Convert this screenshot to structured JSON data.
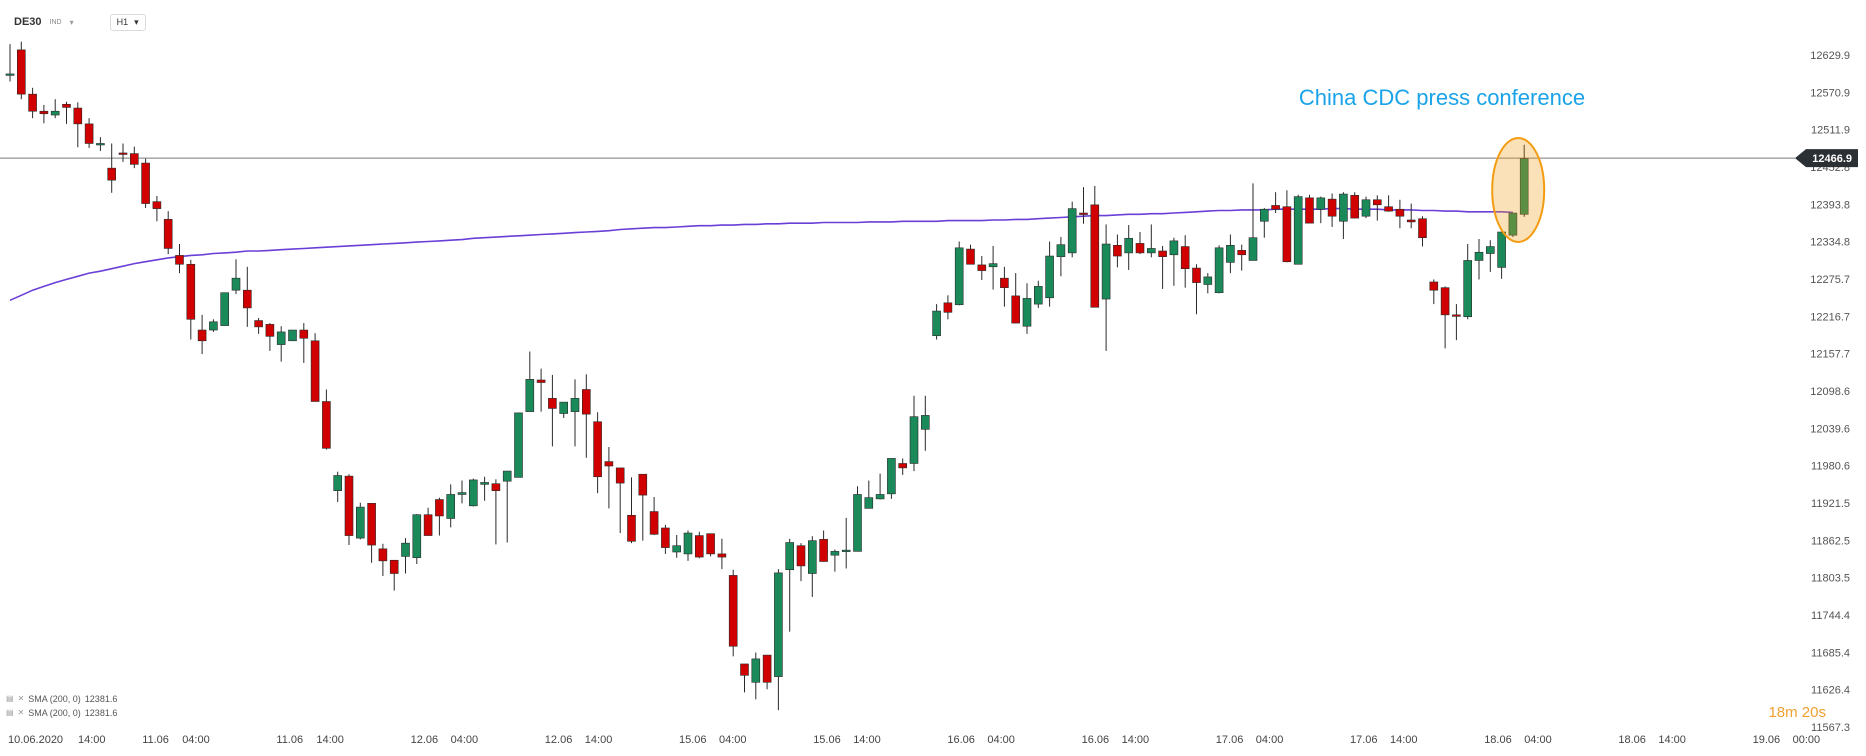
{
  "header": {
    "symbol": "DE30",
    "exchange": "IND",
    "timeframe": "H1"
  },
  "legend": [
    {
      "label": "SMA (200, 0)",
      "value": "12381.6"
    },
    {
      "label": "SMA (200, 0)",
      "value": "12381.6"
    }
  ],
  "timer": "18m 20s",
  "colors": {
    "up": "#1a8a5a",
    "down": "#d00000",
    "sma": "#6a3fd8",
    "annotation": "#1aa3e8",
    "highlight": "#f39c12"
  },
  "chart_data": {
    "type": "candlestick",
    "symbol": "DE30",
    "timeframe": "H1",
    "current_price": "12466.9",
    "annotation": "China CDC press conference",
    "y_ticks": [
      "12629.9",
      "12570.9",
      "12511.9",
      "12452.8",
      "12393.8",
      "12334.8",
      "12275.7",
      "12216.7",
      "12157.7",
      "12098.6",
      "12039.6",
      "11980.6",
      "11921.5",
      "11862.5",
      "11803.5",
      "11744.4",
      "11685.4",
      "11626.4",
      "11567.3"
    ],
    "ylim": [
      11567.3,
      12629.9
    ],
    "x_ticks": [
      "10.06.2020",
      "14:00",
      "11.06",
      "04:00",
      "11.06",
      "14:00",
      "12.06",
      "04:00",
      "12.06",
      "14:00",
      "15.06",
      "04:00",
      "15.06",
      "14:00",
      "16.06",
      "04:00",
      "16.06",
      "14:00",
      "17.06",
      "04:00",
      "17.06",
      "14:00",
      "18.06",
      "04:00",
      "18.06",
      "14:00",
      "19.06",
      "00:00"
    ],
    "grid": false,
    "candles": [
      [
        12598,
        12644,
        12600,
        12647,
        12588
      ],
      [
        12638,
        12647,
        12568,
        12651,
        12560
      ],
      [
        12568,
        12575,
        12541,
        12578,
        12530
      ],
      [
        12541,
        12549,
        12537,
        12551,
        12522
      ],
      [
        12535,
        12552,
        12541,
        12560,
        12530
      ],
      [
        12552,
        12530,
        12547,
        12556,
        12521
      ],
      [
        12546,
        12552,
        12521,
        12555,
        12484
      ],
      [
        12521,
        12526,
        12490,
        12530,
        12483
      ],
      [
        12489,
        12493,
        12490,
        12500,
        12478
      ],
      [
        12451,
        12476,
        12432,
        12490,
        12412
      ],
      [
        12475,
        12484,
        12473,
        12490,
        12461
      ],
      [
        12474,
        12478,
        12457,
        12485,
        12451
      ],
      [
        12459,
        12463,
        12395,
        12466,
        12388
      ],
      [
        12398,
        12392,
        12387,
        12407,
        12367
      ],
      [
        12370,
        12375,
        12324,
        12383,
        12315
      ],
      [
        12313,
        12325,
        12299,
        12331,
        12285
      ],
      [
        12299,
        12303,
        12212,
        12306,
        12180
      ],
      [
        12195,
        12211,
        12178,
        12219,
        12157
      ],
      [
        12195,
        12201,
        12208,
        12212,
        12192
      ],
      [
        12202,
        12210,
        12254,
        12221,
        12254
      ],
      [
        12258,
        12300,
        12277,
        12307,
        12252
      ],
      [
        12258,
        12285,
        12230,
        12295,
        12200
      ],
      [
        12210,
        12189,
        12200,
        12214,
        12191
      ],
      [
        12204,
        12193,
        12185,
        12206,
        12162
      ],
      [
        12172,
        12194,
        12192,
        12201,
        12145
      ],
      [
        12178,
        12195,
        12195,
        12195,
        12190
      ],
      [
        12195,
        12200,
        12182,
        12206,
        12143
      ],
      [
        12178,
        12182,
        12082,
        12190,
        12083
      ],
      [
        12082,
        12092,
        12008,
        12101,
        12006
      ],
      [
        11941,
        11966,
        11965,
        11971,
        11923
      ],
      [
        11964,
        11966,
        11870,
        11967,
        11855
      ],
      [
        11866,
        11868,
        11915,
        11922,
        11864
      ],
      [
        11921,
        11920,
        11855,
        11920,
        11827
      ],
      [
        11849,
        11844,
        11830,
        11857,
        11806
      ],
      [
        11831,
        11830,
        11810,
        11820,
        11783
      ],
      [
        11837,
        11840,
        11858,
        11866,
        11810
      ],
      [
        11835,
        11842,
        11903,
        11904,
        11825
      ],
      [
        11903,
        11904,
        11870,
        11914,
        11880
      ],
      [
        11927,
        11906,
        11901,
        11930,
        11870
      ],
      [
        11897,
        11930,
        11935,
        11951,
        11883
      ],
      [
        11935,
        11940,
        11938,
        11957,
        11921
      ],
      [
        11917,
        11950,
        11958,
        11960,
        11916
      ],
      [
        11951,
        11950,
        11954,
        11963,
        11925
      ],
      [
        11952,
        11959,
        11941,
        11955,
        11856
      ],
      [
        11956,
        11866,
        11972,
        11966,
        11859
      ],
      [
        11962,
        11962,
        12064,
        12040,
        12010
      ],
      [
        12066,
        12118,
        12117,
        12161,
        12068
      ],
      [
        12116,
        12115,
        12112,
        12134,
        12066
      ],
      [
        12087,
        12116,
        12071,
        12124,
        12011
      ],
      [
        12063,
        12067,
        12081,
        12081,
        12056
      ],
      [
        12066,
        12069,
        12087,
        12117,
        12011
      ],
      [
        12101,
        12100,
        12062,
        12125,
        11993
      ],
      [
        12050,
        12044,
        11963,
        12065,
        11937
      ],
      [
        11987,
        11984,
        11980,
        12010,
        11913
      ],
      [
        11977,
        11976,
        11953,
        11966,
        11874
      ],
      [
        11902,
        11900,
        11861,
        11962,
        11858
      ],
      [
        11967,
        11964,
        11934,
        11953,
        11862
      ],
      [
        11908,
        11912,
        11872,
        11931,
        11871
      ],
      [
        11882,
        11882,
        11851,
        11887,
        11841
      ],
      [
        11844,
        11840,
        11854,
        11871,
        11835
      ],
      [
        11841,
        11843,
        11874,
        11878,
        11830
      ],
      [
        11870,
        11869,
        11836,
        11876,
        11834
      ],
      [
        11873,
        11870,
        11841,
        11871,
        11837
      ],
      [
        11841,
        11844,
        11836,
        11865,
        11817
      ],
      [
        11807,
        11815,
        11695,
        11816,
        11679
      ],
      [
        11667,
        11664,
        11649,
        11666,
        11622
      ],
      [
        11638,
        11636,
        11675,
        11685,
        11611
      ],
      [
        11681,
        11676,
        11638,
        11666,
        11627
      ],
      [
        11647,
        11634,
        11811,
        11817,
        11594
      ],
      [
        11816,
        11812,
        11859,
        11865,
        11718
      ],
      [
        11854,
        11848,
        11822,
        11858,
        11798
      ],
      [
        11810,
        11808,
        11862,
        11869,
        11773
      ],
      [
        11864,
        11848,
        11829,
        11878,
        11832
      ],
      [
        11839,
        11842,
        11845,
        11848,
        11813
      ],
      [
        11846,
        11843,
        11847,
        11898,
        11818
      ],
      [
        11845,
        11849,
        11935,
        11948,
        11849
      ],
      [
        11913,
        11913,
        11930,
        11957,
        11913
      ],
      [
        11928,
        11945,
        11935,
        11968,
        11927
      ],
      [
        11936,
        11934,
        11992,
        11992,
        11928
      ],
      [
        11984,
        11984,
        11977,
        11992,
        11966
      ],
      [
        11984,
        11992,
        12058,
        12091,
        11972
      ],
      [
        12038,
        12060,
        12060,
        12091,
        12004
      ],
      [
        12186,
        12180,
        12225,
        12236,
        12181
      ],
      [
        12238,
        12212,
        12223,
        12250,
        12212
      ],
      [
        12235,
        12235,
        12325,
        12335,
        12234
      ],
      [
        12323,
        12330,
        12299,
        12322,
        12299
      ],
      [
        12298,
        12311,
        12289,
        12312,
        12274
      ],
      [
        12295,
        12319,
        12300,
        12328,
        12259
      ],
      [
        12277,
        12268,
        12262,
        12295,
        12232
      ],
      [
        12249,
        12267,
        12206,
        12285,
        12212
      ],
      [
        12201,
        12215,
        12245,
        12269,
        12189
      ],
      [
        12236,
        12237,
        12264,
        12273,
        12230
      ],
      [
        12246,
        12253,
        12312,
        12335,
        12232
      ],
      [
        12311,
        12320,
        12330,
        12342,
        12280
      ],
      [
        12317,
        12322,
        12387,
        12398,
        12310
      ],
      [
        12380,
        12388,
        12378,
        12421,
        12363
      ],
      [
        12393,
        12379,
        12231,
        12423,
        12231
      ],
      [
        12244,
        12243,
        12331,
        12362,
        12162
      ],
      [
        12329,
        12332,
        12312,
        12346,
        12294
      ],
      [
        12317,
        12312,
        12340,
        12361,
        12290
      ],
      [
        12332,
        12328,
        12317,
        12350,
        12315
      ],
      [
        12317,
        12310,
        12324,
        12362,
        12314
      ],
      [
        12320,
        12328,
        12311,
        12328,
        12260
      ],
      [
        12314,
        12313,
        12336,
        12341,
        12265
      ],
      [
        12327,
        12330,
        12292,
        12345,
        12262
      ],
      [
        12293,
        12286,
        12270,
        12299,
        12220
      ],
      [
        12267,
        12267,
        12279,
        12285,
        12253
      ],
      [
        12254,
        12267,
        12325,
        12329,
        12253
      ],
      [
        12302,
        12312,
        12329,
        12346,
        12285
      ],
      [
        12321,
        12330,
        12314,
        12326,
        12289
      ],
      [
        12305,
        12312,
        12341,
        12427,
        12311
      ],
      [
        12367,
        12341,
        12386,
        12388,
        12346
      ],
      [
        12392,
        12390,
        12386,
        12413,
        12380
      ],
      [
        12390,
        12390,
        12303,
        12416,
        12302
      ],
      [
        12299,
        12305,
        12406,
        12409,
        12302
      ],
      [
        12404,
        12406,
        12364,
        12409,
        12374
      ],
      [
        12386,
        12364,
        12404,
        12406,
        12365
      ],
      [
        12402,
        12407,
        12375,
        12411,
        12358
      ],
      [
        12367,
        12375,
        12410,
        12413,
        12339
      ],
      [
        12408,
        12410,
        12372,
        12413,
        12385
      ],
      [
        12375,
        12372,
        12401,
        12406,
        12372
      ],
      [
        12401,
        12404,
        12393,
        12408,
        12368
      ],
      [
        12390,
        12393,
        12383,
        12408,
        12382
      ],
      [
        12386,
        12385,
        12375,
        12401,
        12356
      ],
      [
        12369,
        12372,
        12366,
        12395,
        12356
      ],
      [
        12371,
        12372,
        12341,
        12375,
        12327
      ],
      [
        12271,
        12275,
        12258,
        12264,
        12236
      ],
      [
        12262,
        12256,
        12219,
        12264,
        12166
      ],
      [
        12219,
        12213,
        12217,
        12236,
        12179
      ],
      [
        12216,
        12212,
        12305,
        12331,
        12223
      ],
      [
        12305,
        12323,
        12318,
        12339,
        12275
      ],
      [
        12316,
        12308,
        12327,
        12337,
        12287
      ],
      [
        12294,
        12294,
        12350,
        12341,
        12276
      ],
      [
        12345,
        12347,
        12380,
        12377,
        12342
      ],
      [
        12378,
        12384,
        12466,
        12488,
        12374
      ]
    ],
    "sma": {
      "name": "SMA (200, 0)",
      "values": [
        12242,
        12250,
        12258,
        12264,
        12270,
        12275,
        12280,
        12285,
        12288,
        12292,
        12296,
        12300,
        12303,
        12306,
        12309,
        12311,
        12313,
        12314,
        12316,
        12317,
        12318,
        12320,
        12320,
        12321,
        12322,
        12323,
        12324,
        12325,
        12326,
        12327,
        12328,
        12329,
        12330,
        12331,
        12332,
        12333,
        12334,
        12335,
        12336,
        12337,
        12338,
        12340,
        12341,
        12342,
        12343,
        12344,
        12345,
        12346,
        12347,
        12348,
        12349,
        12350,
        12351,
        12352,
        12354,
        12355,
        12356,
        12357,
        12357,
        12358,
        12359,
        12360,
        12360,
        12361,
        12361,
        12362,
        12362,
        12363,
        12363,
        12364,
        12364,
        12364,
        12365,
        12365,
        12365,
        12365,
        12366,
        12366,
        12366,
        12367,
        12367,
        12367,
        12367,
        12368,
        12368,
        12368,
        12368,
        12369,
        12369,
        12370,
        12370,
        12371,
        12372,
        12373,
        12374,
        12375,
        12376,
        12376,
        12377,
        12378,
        12378,
        12379,
        12379,
        12380,
        12381,
        12382,
        12383,
        12384,
        12384,
        12385,
        12385,
        12385,
        12386,
        12386,
        12386,
        12386,
        12386,
        12387,
        12387,
        12386,
        12386,
        12386,
        12385,
        12385,
        12385,
        12384,
        12384,
        12383,
        12383,
        12382,
        12382,
        12382,
        12382,
        12381
      ]
    }
  }
}
